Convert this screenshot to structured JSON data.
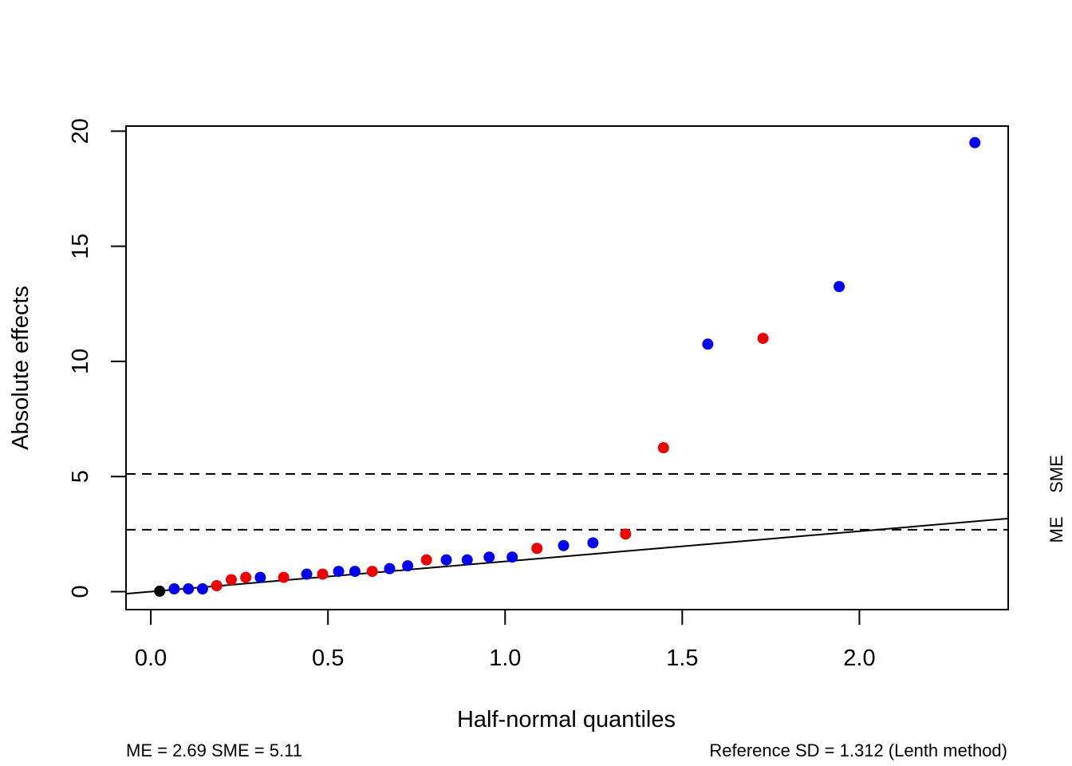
{
  "chart_data": {
    "type": "scatter",
    "title": "",
    "xlabel": "Half-normal quantiles",
    "ylabel": "Absolute effects",
    "xlim": [
      -0.07,
      2.42
    ],
    "ylim": [
      -0.78,
      20.22
    ],
    "xticks": [
      {
        "value": 0.0,
        "label": "0.0"
      },
      {
        "value": 0.5,
        "label": "0.5"
      },
      {
        "value": 1.0,
        "label": "1.0"
      },
      {
        "value": 1.5,
        "label": "1.5"
      },
      {
        "value": 2.0,
        "label": "2.0"
      }
    ],
    "yticks": [
      {
        "value": 0,
        "label": "0"
      },
      {
        "value": 5,
        "label": "5"
      },
      {
        "value": 10,
        "label": "10"
      },
      {
        "value": 15,
        "label": "15"
      },
      {
        "value": 20,
        "label": "20"
      }
    ],
    "grid": false,
    "legend": "none",
    "colors": {
      "black": "#000000",
      "blue": "#0000ee",
      "red": "#ee0000"
    },
    "points": [
      {
        "x": 0.025,
        "y": 0.02,
        "color": "black"
      },
      {
        "x": 0.066,
        "y": 0.12,
        "color": "blue"
      },
      {
        "x": 0.106,
        "y": 0.12,
        "color": "blue"
      },
      {
        "x": 0.146,
        "y": 0.12,
        "color": "blue"
      },
      {
        "x": 0.186,
        "y": 0.26,
        "color": "red"
      },
      {
        "x": 0.227,
        "y": 0.52,
        "color": "red"
      },
      {
        "x": 0.268,
        "y": 0.62,
        "color": "red"
      },
      {
        "x": 0.309,
        "y": 0.62,
        "color": "blue"
      },
      {
        "x": 0.375,
        "y": 0.62,
        "color": "red"
      },
      {
        "x": 0.44,
        "y": 0.76,
        "color": "blue"
      },
      {
        "x": 0.485,
        "y": 0.76,
        "color": "red"
      },
      {
        "x": 0.53,
        "y": 0.88,
        "color": "blue"
      },
      {
        "x": 0.576,
        "y": 0.88,
        "color": "blue"
      },
      {
        "x": 0.625,
        "y": 0.88,
        "color": "red"
      },
      {
        "x": 0.674,
        "y": 1.0,
        "color": "blue"
      },
      {
        "x": 0.725,
        "y": 1.12,
        "color": "blue"
      },
      {
        "x": 0.778,
        "y": 1.38,
        "color": "red"
      },
      {
        "x": 0.834,
        "y": 1.38,
        "color": "blue"
      },
      {
        "x": 0.893,
        "y": 1.38,
        "color": "blue"
      },
      {
        "x": 0.955,
        "y": 1.5,
        "color": "blue"
      },
      {
        "x": 1.02,
        "y": 1.5,
        "color": "blue"
      },
      {
        "x": 1.09,
        "y": 1.88,
        "color": "red"
      },
      {
        "x": 1.165,
        "y": 2.0,
        "color": "blue"
      },
      {
        "x": 1.248,
        "y": 2.12,
        "color": "blue"
      },
      {
        "x": 1.34,
        "y": 2.5,
        "color": "red"
      },
      {
        "x": 1.447,
        "y": 6.25,
        "color": "red"
      },
      {
        "x": 1.572,
        "y": 10.75,
        "color": "blue"
      },
      {
        "x": 1.728,
        "y": 11.0,
        "color": "red"
      },
      {
        "x": 1.943,
        "y": 13.25,
        "color": "blue"
      },
      {
        "x": 2.326,
        "y": 19.5,
        "color": "blue"
      }
    ],
    "reference_line": {
      "intercept": 0,
      "slope": 1.312
    },
    "reference_lines": [
      {
        "label": "SME",
        "value": 5.11,
        "style": "dashed"
      },
      {
        "label": "ME",
        "value": 2.69,
        "style": "dashed"
      }
    ],
    "footer_left": "ME = 2.69  SME = 5.11",
    "footer_right": "Reference SD = 1.312 (Lenth method)"
  }
}
